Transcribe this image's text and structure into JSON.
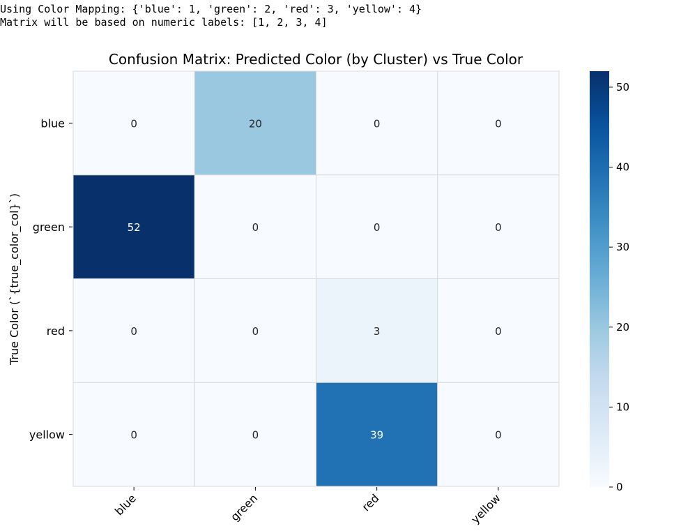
{
  "console": {
    "line1": "Using Color Mapping: {'blue': 1, 'green': 2, 'red': 3, 'yellow': 4}",
    "line2": "Matrix will be based on numeric labels: [1, 2, 3, 4]"
  },
  "chart_data": {
    "type": "heatmap",
    "title": "Confusion Matrix: Predicted Color (by Cluster) vs True Color",
    "xlabel": "",
    "ylabel": "True Color (`{true_color_col}`)",
    "x_categories": [
      "blue",
      "green",
      "red",
      "yellow"
    ],
    "y_categories": [
      "blue",
      "green",
      "red",
      "yellow"
    ],
    "values": [
      [
        0,
        20,
        0,
        0
      ],
      [
        52,
        0,
        0,
        0
      ],
      [
        0,
        0,
        3,
        0
      ],
      [
        0,
        0,
        39,
        0
      ]
    ],
    "colorbar": {
      "range": [
        0,
        52
      ],
      "ticks": [
        0,
        10,
        20,
        30,
        40,
        50
      ]
    },
    "colormap": "Blues"
  }
}
